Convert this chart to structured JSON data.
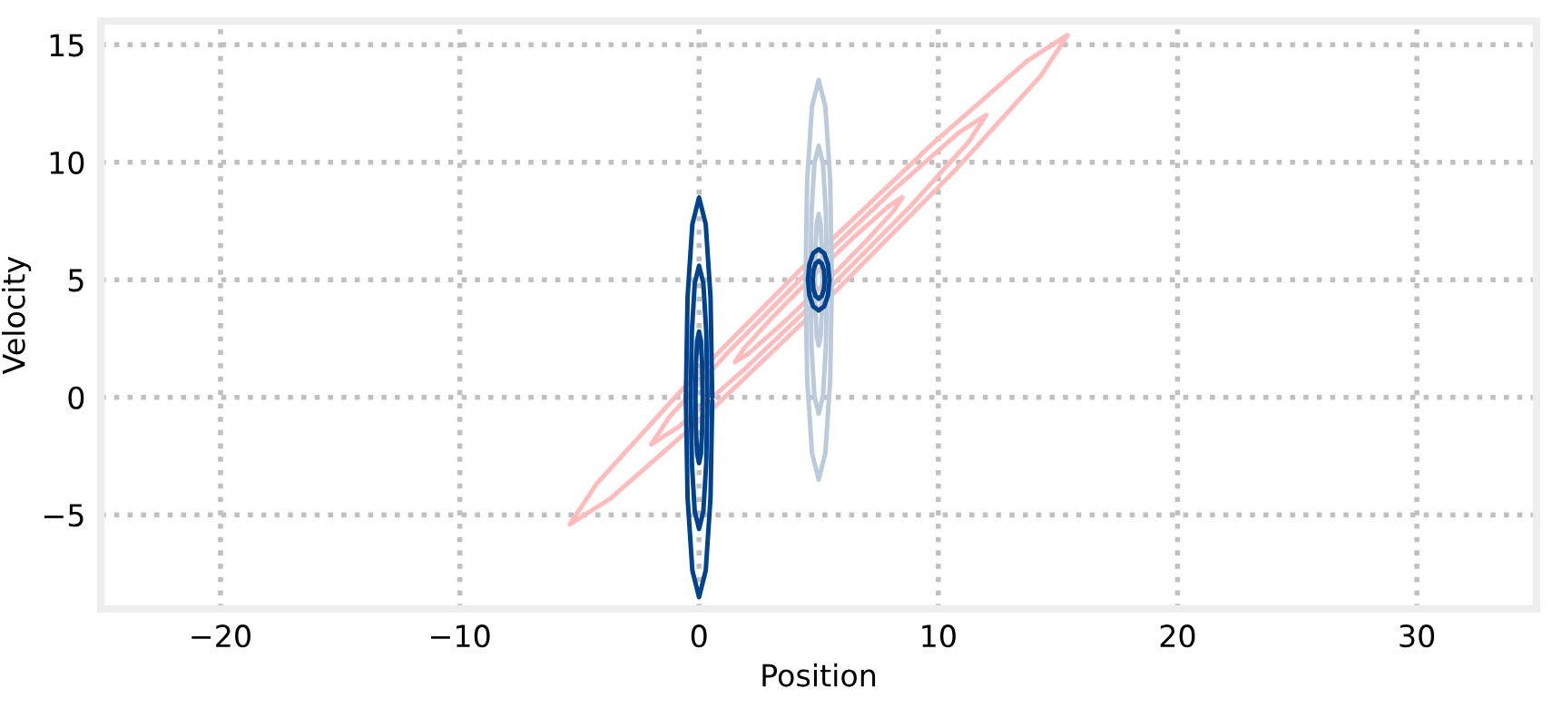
{
  "chart_data": {
    "type": "line",
    "xlabel": "Position",
    "ylabel": "Velocity",
    "xlim": [
      -25,
      35
    ],
    "ylim": [
      -9,
      16
    ],
    "xticks": [
      {
        "value": -20,
        "label": "−20"
      },
      {
        "value": -10,
        "label": "−10"
      },
      0,
      10,
      20,
      30
    ],
    "yticks": [
      {
        "value": -5,
        "label": "−5"
      },
      0,
      5,
      10,
      15
    ],
    "grid": true,
    "marker": "none",
    "line_style": "solid",
    "series": [
      {
        "color": "#ffbcbc",
        "x": [
          15.4,
          14.3,
          10.72,
          5.6,
          0.32,
          -3.7,
          -5.4,
          -4.3,
          -0.72,
          4.4,
          9.68,
          13.7,
          15.39
        ],
        "values": [
          15.4,
          13.7,
          9.68,
          4.4,
          -0.72,
          -4.3,
          -5.4,
          -3.7,
          0.32,
          5.6,
          10.72,
          14.3,
          15.41
        ]
      },
      {
        "color": "#ffbcbc",
        "x": [
          12,
          11.26,
          8.85,
          5.4,
          1.85,
          -0.86,
          -2,
          -1.26,
          1.15,
          4.6,
          8.15,
          10.86,
          11.99
        ],
        "values": [
          12,
          10.86,
          8.15,
          4.6,
          1.15,
          -1.26,
          -2,
          -0.86,
          1.85,
          5.4,
          8.85,
          11.26,
          12.01
        ]
      },
      {
        "color": "#ffbcbc",
        "x": [
          8.5,
          8.13,
          6.92,
          5.2,
          3.42,
          2.07,
          1.5,
          1.87,
          3.08,
          4.8,
          6.58,
          7.93,
          8.49
        ],
        "values": [
          8.5,
          7.93,
          6.58,
          4.8,
          3.08,
          1.87,
          1.5,
          2.07,
          3.42,
          5.2,
          6.92,
          8.13,
          8.51
        ]
      },
      {
        "color": "#bccbdc",
        "x": [
          5.55,
          5.48,
          5.28,
          5,
          4.72,
          4.52,
          4.45,
          4.52,
          4.72,
          5,
          5.28,
          5.48,
          5.55
        ],
        "values": [
          5,
          9.25,
          12.36,
          13.5,
          12.36,
          9.25,
          5,
          0.75,
          -2.36,
          -3.5,
          -2.36,
          0.75,
          4.85
        ]
      },
      {
        "color": "#bccbdc",
        "x": [
          5.35,
          5.3,
          5.18,
          5,
          4.82,
          4.7,
          4.65,
          4.7,
          4.82,
          5,
          5.18,
          5.3,
          5.35
        ],
        "values": [
          5,
          7.85,
          9.94,
          10.7,
          9.94,
          7.85,
          5,
          2.15,
          0.06,
          -0.7,
          0.06,
          2.15,
          4.9
        ]
      },
      {
        "color": "#bccbdc",
        "x": [
          5.15,
          5.13,
          5.08,
          5,
          4.92,
          4.87,
          4.85,
          4.87,
          4.92,
          5,
          5.08,
          5.13,
          5.15
        ],
        "values": [
          5,
          6.4,
          7.4,
          7.8,
          7.4,
          6.4,
          5,
          3.6,
          2.6,
          2.2,
          2.6,
          3.6,
          4.95
        ]
      },
      {
        "color": "#00428c",
        "x": [
          0.55,
          0.48,
          0.28,
          0,
          -0.28,
          -0.48,
          -0.55,
          -0.48,
          -0.28,
          0,
          0.28,
          0.48,
          0.55
        ],
        "values": [
          0,
          4.25,
          7.36,
          8.5,
          7.36,
          4.25,
          0,
          -4.25,
          -7.36,
          -8.5,
          -7.36,
          -4.25,
          -0.15
        ]
      },
      {
        "color": "#00428c",
        "x": [
          0.35,
          0.3,
          0.18,
          0,
          -0.18,
          -0.3,
          -0.35,
          -0.3,
          -0.18,
          0,
          0.18,
          0.3,
          0.35
        ],
        "values": [
          0,
          2.8,
          4.85,
          5.6,
          4.85,
          2.8,
          0,
          -2.8,
          -4.85,
          -5.6,
          -4.85,
          -2.8,
          -0.1
        ]
      },
      {
        "color": "#00428c",
        "x": [
          0.15,
          0.13,
          0.08,
          0,
          -0.08,
          -0.13,
          -0.15,
          -0.13,
          -0.08,
          0,
          0.08,
          0.13,
          0.15
        ],
        "values": [
          0,
          1.4,
          2.4,
          2.8,
          2.4,
          1.4,
          0,
          -1.4,
          -2.4,
          -2.8,
          -2.4,
          -1.4,
          -0.05
        ]
      },
      {
        "color": "#00428c",
        "x": [
          5.45,
          5.39,
          5.23,
          5,
          4.77,
          4.61,
          4.55,
          4.61,
          4.77,
          5,
          5.23,
          5.39,
          5.45
        ],
        "values": [
          5,
          5.65,
          6.13,
          6.3,
          6.13,
          5.65,
          5,
          4.35,
          3.87,
          3.7,
          3.87,
          4.35,
          4.98
        ]
      },
      {
        "color": "#00428c",
        "x": [
          5.25,
          5.22,
          5.13,
          5,
          4.87,
          4.78,
          4.75,
          4.78,
          4.87,
          5,
          5.13,
          5.22,
          5.25
        ],
        "values": [
          5,
          5.4,
          5.69,
          5.8,
          5.69,
          5.4,
          5,
          4.6,
          4.31,
          4.2,
          4.31,
          4.6,
          4.99
        ]
      }
    ]
  }
}
